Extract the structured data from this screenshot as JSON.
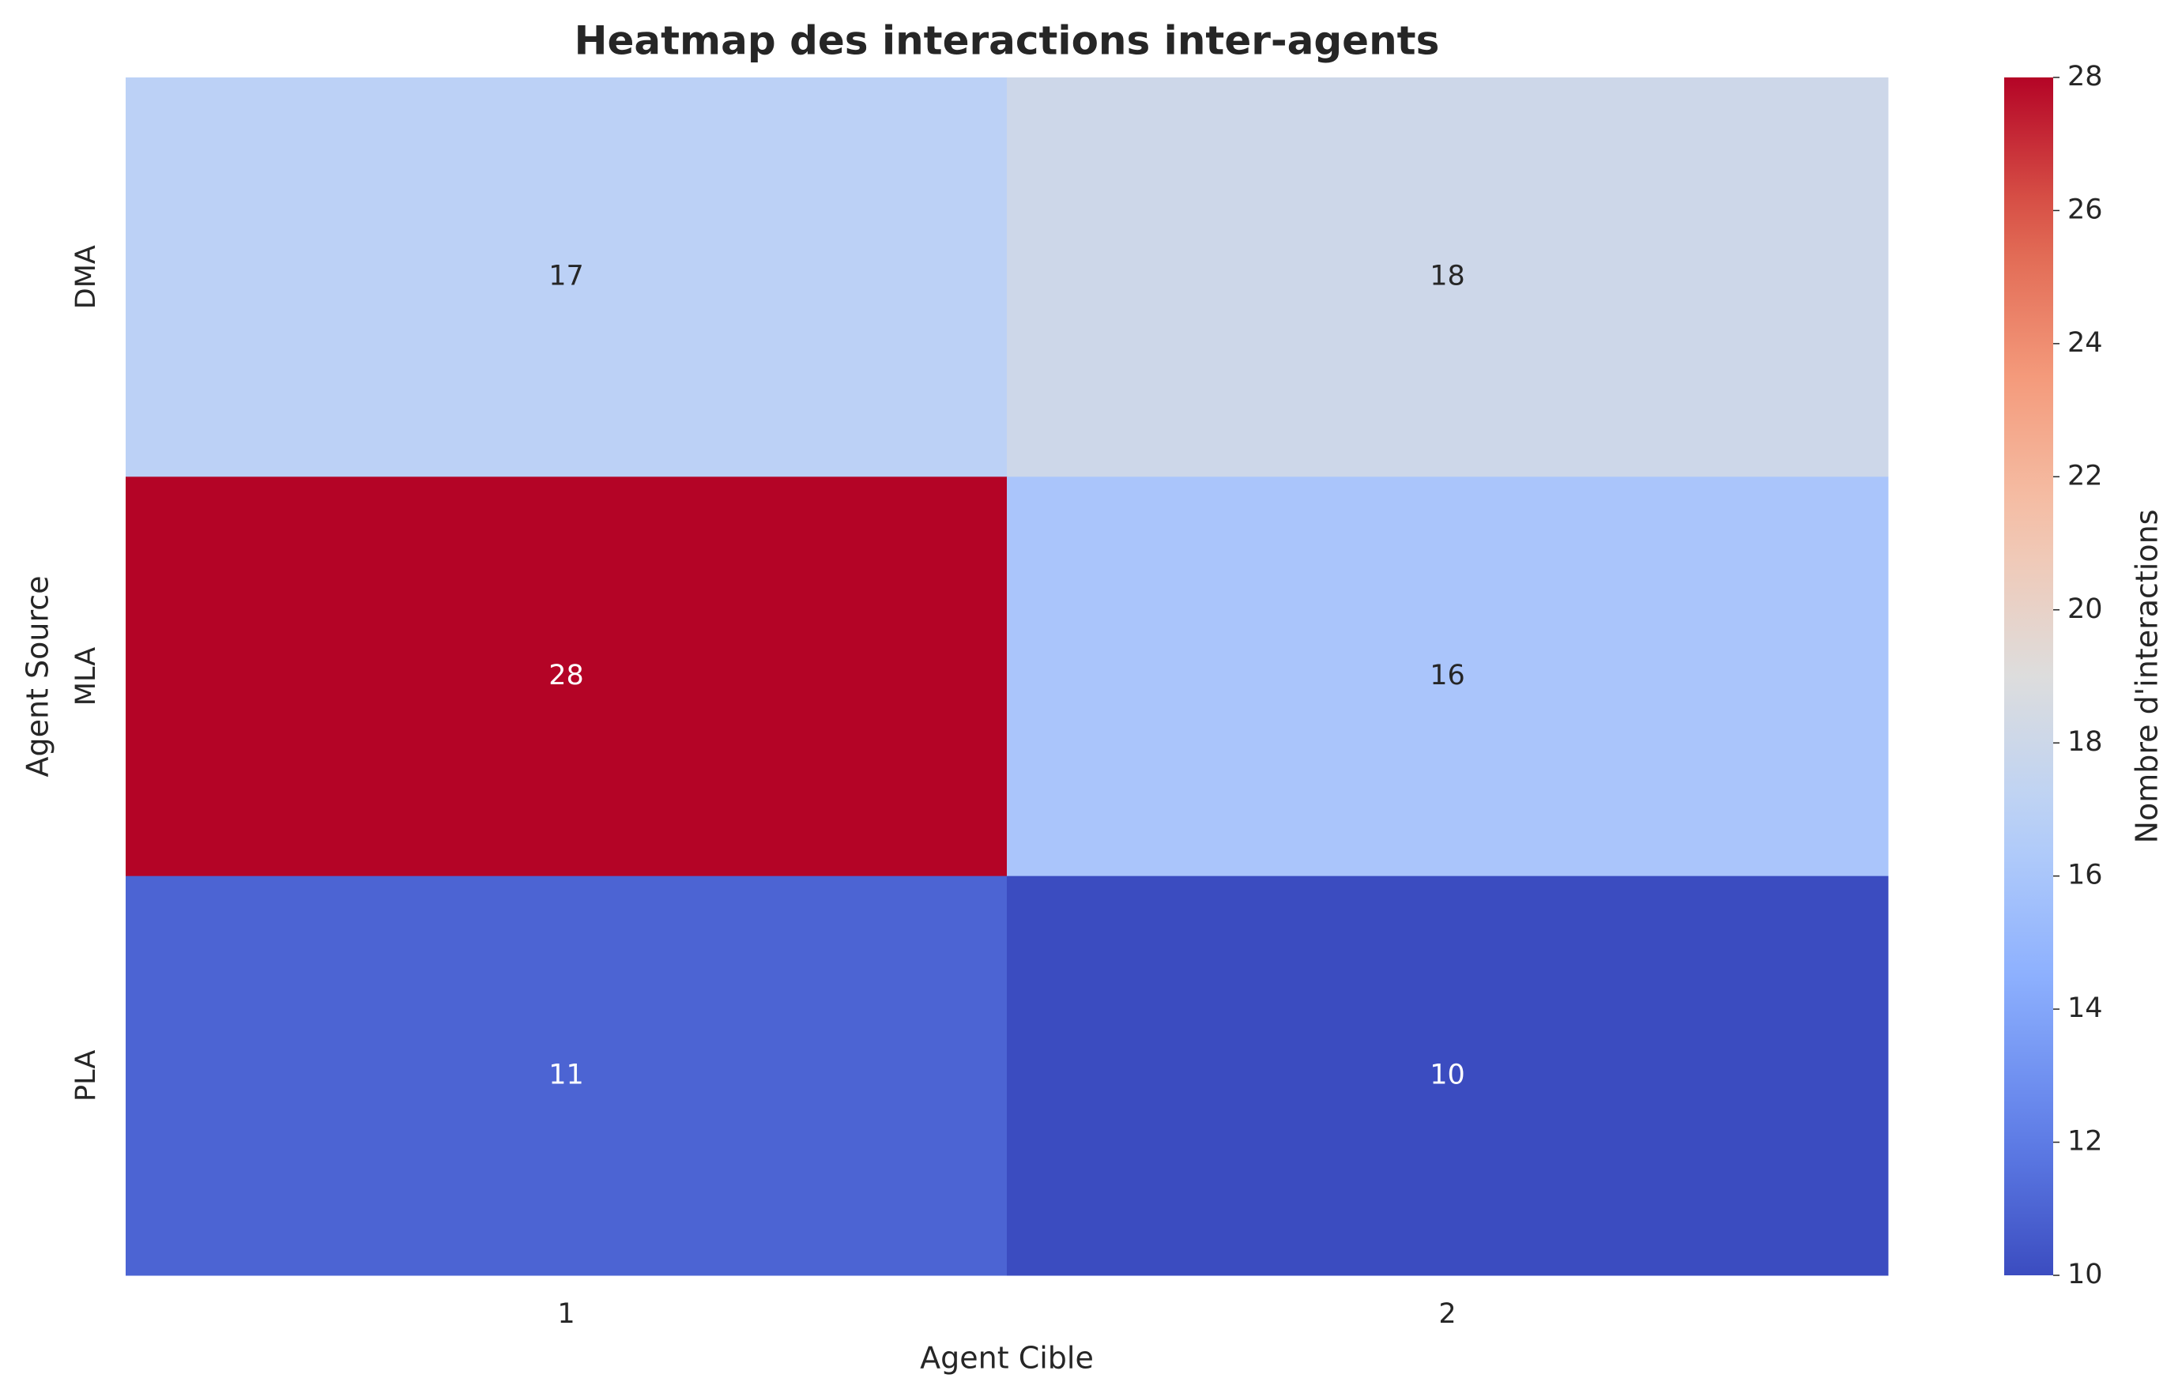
{
  "chart_data": {
    "type": "heatmap",
    "title": "Heatmap des interactions inter-agents",
    "xlabel": "Agent Cible",
    "ylabel": "Agent Source",
    "x_categories": [
      "1",
      "2"
    ],
    "y_categories": [
      "DMA",
      "MLA",
      "PLA"
    ],
    "values": [
      [
        17,
        18
      ],
      [
        28,
        16
      ],
      [
        11,
        10
      ]
    ],
    "colorbar": {
      "label": "Nombre d'interactions",
      "min": 10,
      "max": 28,
      "ticks": [
        10,
        12,
        14,
        16,
        18,
        20,
        22,
        24,
        26,
        28
      ],
      "colormap": "coolwarm"
    },
    "annotations": true,
    "grid": false
  }
}
